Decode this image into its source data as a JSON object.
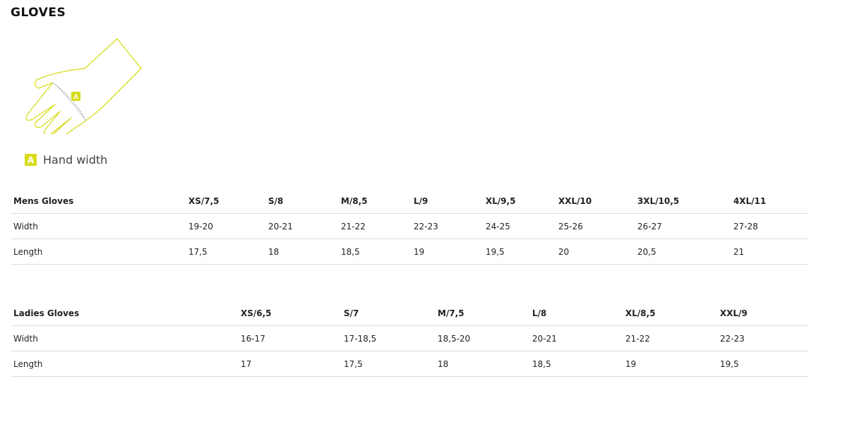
{
  "title": "GLOVES",
  "legend": {
    "badge": "A",
    "label": "Hand width"
  },
  "accent": "#d8dc1c",
  "mens": {
    "headers": [
      "Mens Gloves",
      "XS/7,5",
      "S/8",
      "M/8,5",
      "L/9",
      "XL/9,5",
      "XXL/10",
      "3XL/10,5",
      "4XL/11"
    ],
    "rows": [
      [
        "Width",
        "19-20",
        "20-21",
        "21-22",
        "22-23",
        "24-25",
        "25-26",
        "26-27",
        "27-28"
      ],
      [
        "Length",
        "17,5",
        "18",
        "18,5",
        "19",
        "19,5",
        "20",
        "20,5",
        "21"
      ]
    ]
  },
  "ladies": {
    "headers": [
      "Ladies Gloves",
      "XS/6,5",
      "S/7",
      "M/7,5",
      "L/8",
      "XL/8,5",
      "XXL/9"
    ],
    "rows": [
      [
        "Width",
        "16-17",
        "17-18,5",
        "18,5-20",
        "20-21",
        "21-22",
        "22-23"
      ],
      [
        "Length",
        "17",
        "17,5",
        "18",
        "18,5",
        "19",
        "19,5"
      ]
    ]
  }
}
